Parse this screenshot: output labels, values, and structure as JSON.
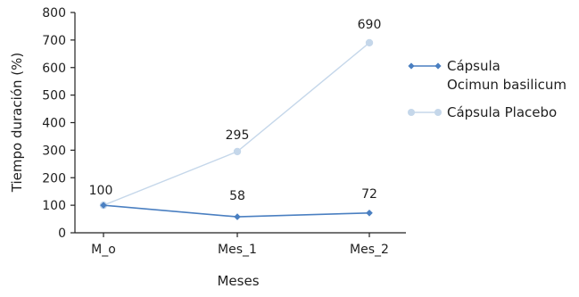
{
  "chart_data": {
    "type": "line",
    "categories": [
      "M_o",
      "Mes_1",
      "Mes_2"
    ],
    "series": [
      {
        "name": "Cápsula Ocimun basilicum",
        "name_lines": [
          "Cápsula",
          "Ocimun basilicum"
        ],
        "values": [
          100,
          58,
          72
        ],
        "labels": [
          "",
          "58",
          "72"
        ],
        "color": "#4a7fc1"
      },
      {
        "name": "Cápsula Placebo",
        "name_lines": [
          "Cápsula Placebo"
        ],
        "values": [
          100,
          295,
          690
        ],
        "labels": [
          "100",
          "295",
          "690"
        ],
        "color": "#c5d7ea"
      }
    ],
    "title": "",
    "xlabel": "Meses",
    "ylabel": "Tiempo duración (%)",
    "ylim": [
      0,
      800
    ],
    "yticks": [
      "0",
      "100",
      "200",
      "300",
      "400",
      "500",
      "600",
      "700",
      "800"
    ],
    "grid": false,
    "legend_position": "right"
  }
}
